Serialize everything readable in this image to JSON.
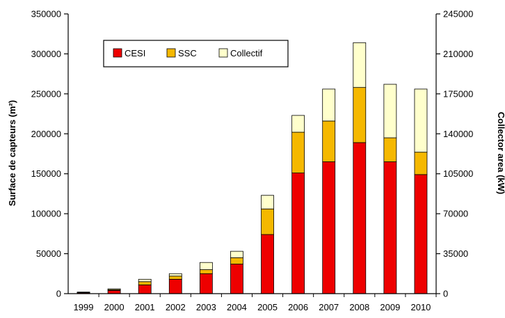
{
  "chart_data": {
    "type": "bar",
    "stacked": true,
    "categories": [
      "1999",
      "2000",
      "2001",
      "2002",
      "2003",
      "2004",
      "2005",
      "2006",
      "2007",
      "2008",
      "2009",
      "2010"
    ],
    "series": [
      {
        "name": "CESI",
        "color": "#ee0000",
        "values": [
          1000,
          4000,
          11000,
          18000,
          25000,
          37000,
          74000,
          151000,
          165000,
          189000,
          165000,
          149000
        ]
      },
      {
        "name": "SSC",
        "color": "#f5b800",
        "values": [
          500,
          1000,
          4000,
          4000,
          5000,
          8000,
          32000,
          51000,
          51000,
          69000,
          30000,
          28000
        ]
      },
      {
        "name": "Collectif",
        "color": "#ffffcc",
        "values": [
          500,
          1000,
          3000,
          3000,
          9000,
          8000,
          17000,
          21000,
          40000,
          56000,
          67000,
          79000
        ]
      }
    ],
    "ylabel_left": "Surface de capteurs (m²)",
    "ylabel_right": "Collector area (kW)",
    "ylim": [
      0,
      350000
    ],
    "yticks_left": [
      "0",
      "50000",
      "100000",
      "150000",
      "200000",
      "250000",
      "300000",
      "350000"
    ],
    "yticks_right": [
      "0",
      "35000",
      "70000",
      "105000",
      "140000",
      "175000",
      "210000",
      "245000"
    ],
    "legend_position": "top-left",
    "grid": false
  }
}
